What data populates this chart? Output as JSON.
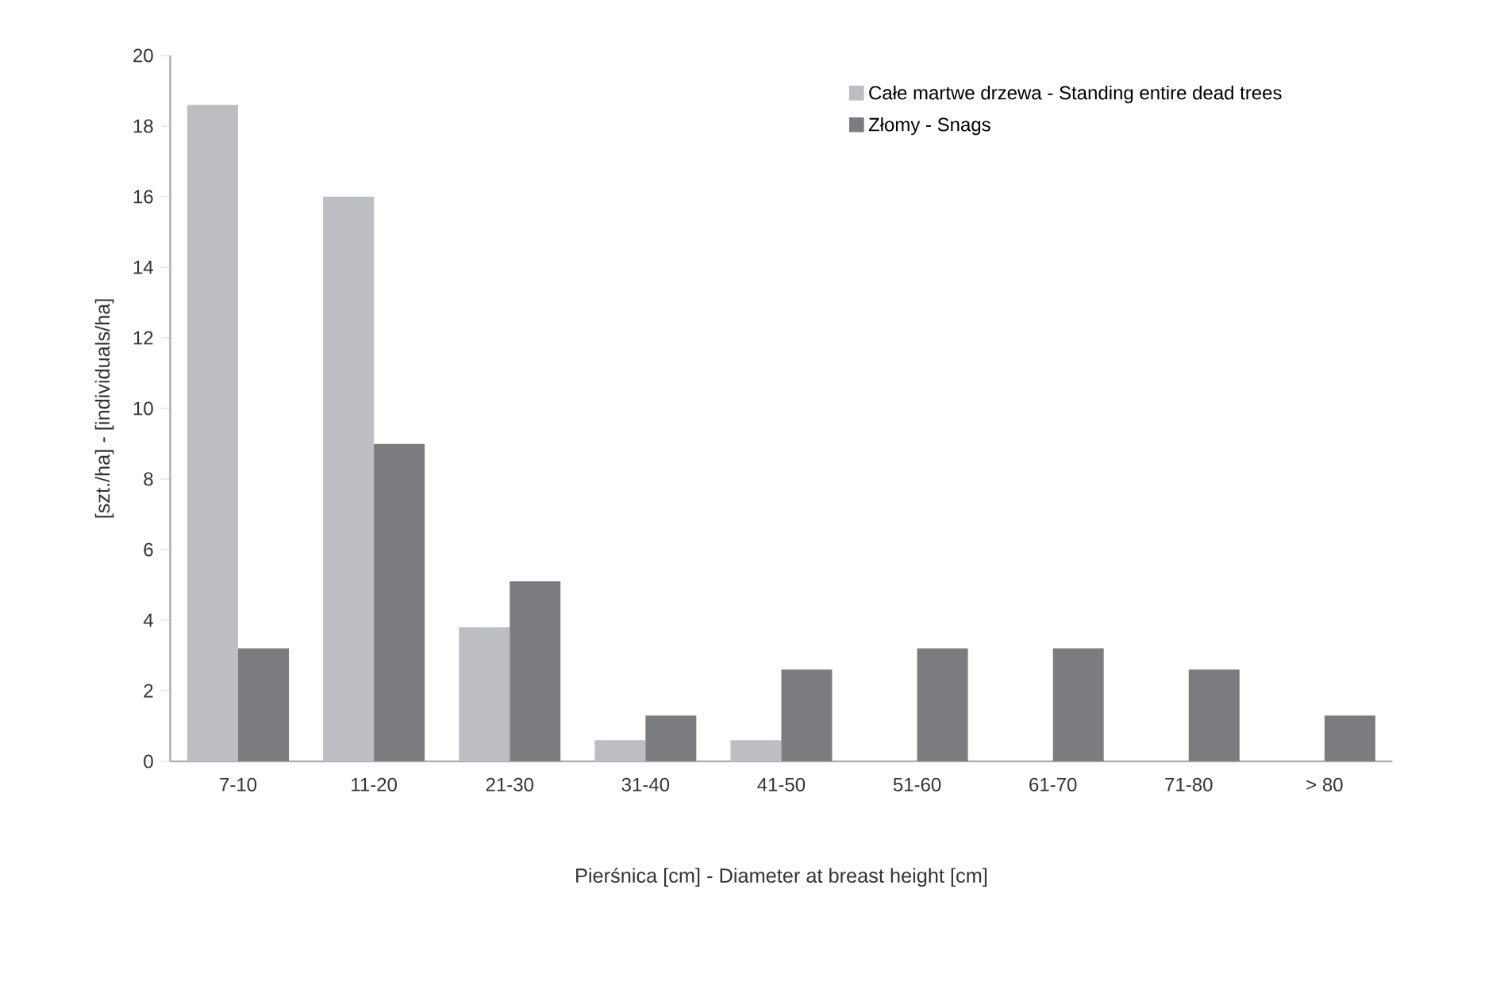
{
  "chart_data": {
    "type": "bar",
    "xlabel": "Pierśnica [cm] - Diameter at breast height [cm]",
    "ylabel": "[szt./ha] - [individuals/ha]",
    "categories": [
      "7-10",
      "11-20",
      "21-30",
      "31-40",
      "41-50",
      "51-60",
      "61-70",
      "71-80",
      "> 80"
    ],
    "series": [
      {
        "name": "Całe martwe drzewa - Standing entire dead trees",
        "color": "#bdbec2",
        "values": [
          18.6,
          16.0,
          3.8,
          0.6,
          0.6,
          null,
          null,
          null,
          null
        ]
      },
      {
        "name": "Złomy - Snags",
        "color": "#7b7c80",
        "values": [
          3.2,
          9.0,
          5.1,
          1.3,
          2.6,
          3.2,
          3.2,
          2.6,
          1.3
        ]
      }
    ],
    "ylim": [
      0,
      20
    ],
    "yticks": [
      0,
      2,
      4,
      6,
      8,
      10,
      12,
      14,
      16,
      18,
      20
    ],
    "grid": false,
    "legend": "top right"
  }
}
